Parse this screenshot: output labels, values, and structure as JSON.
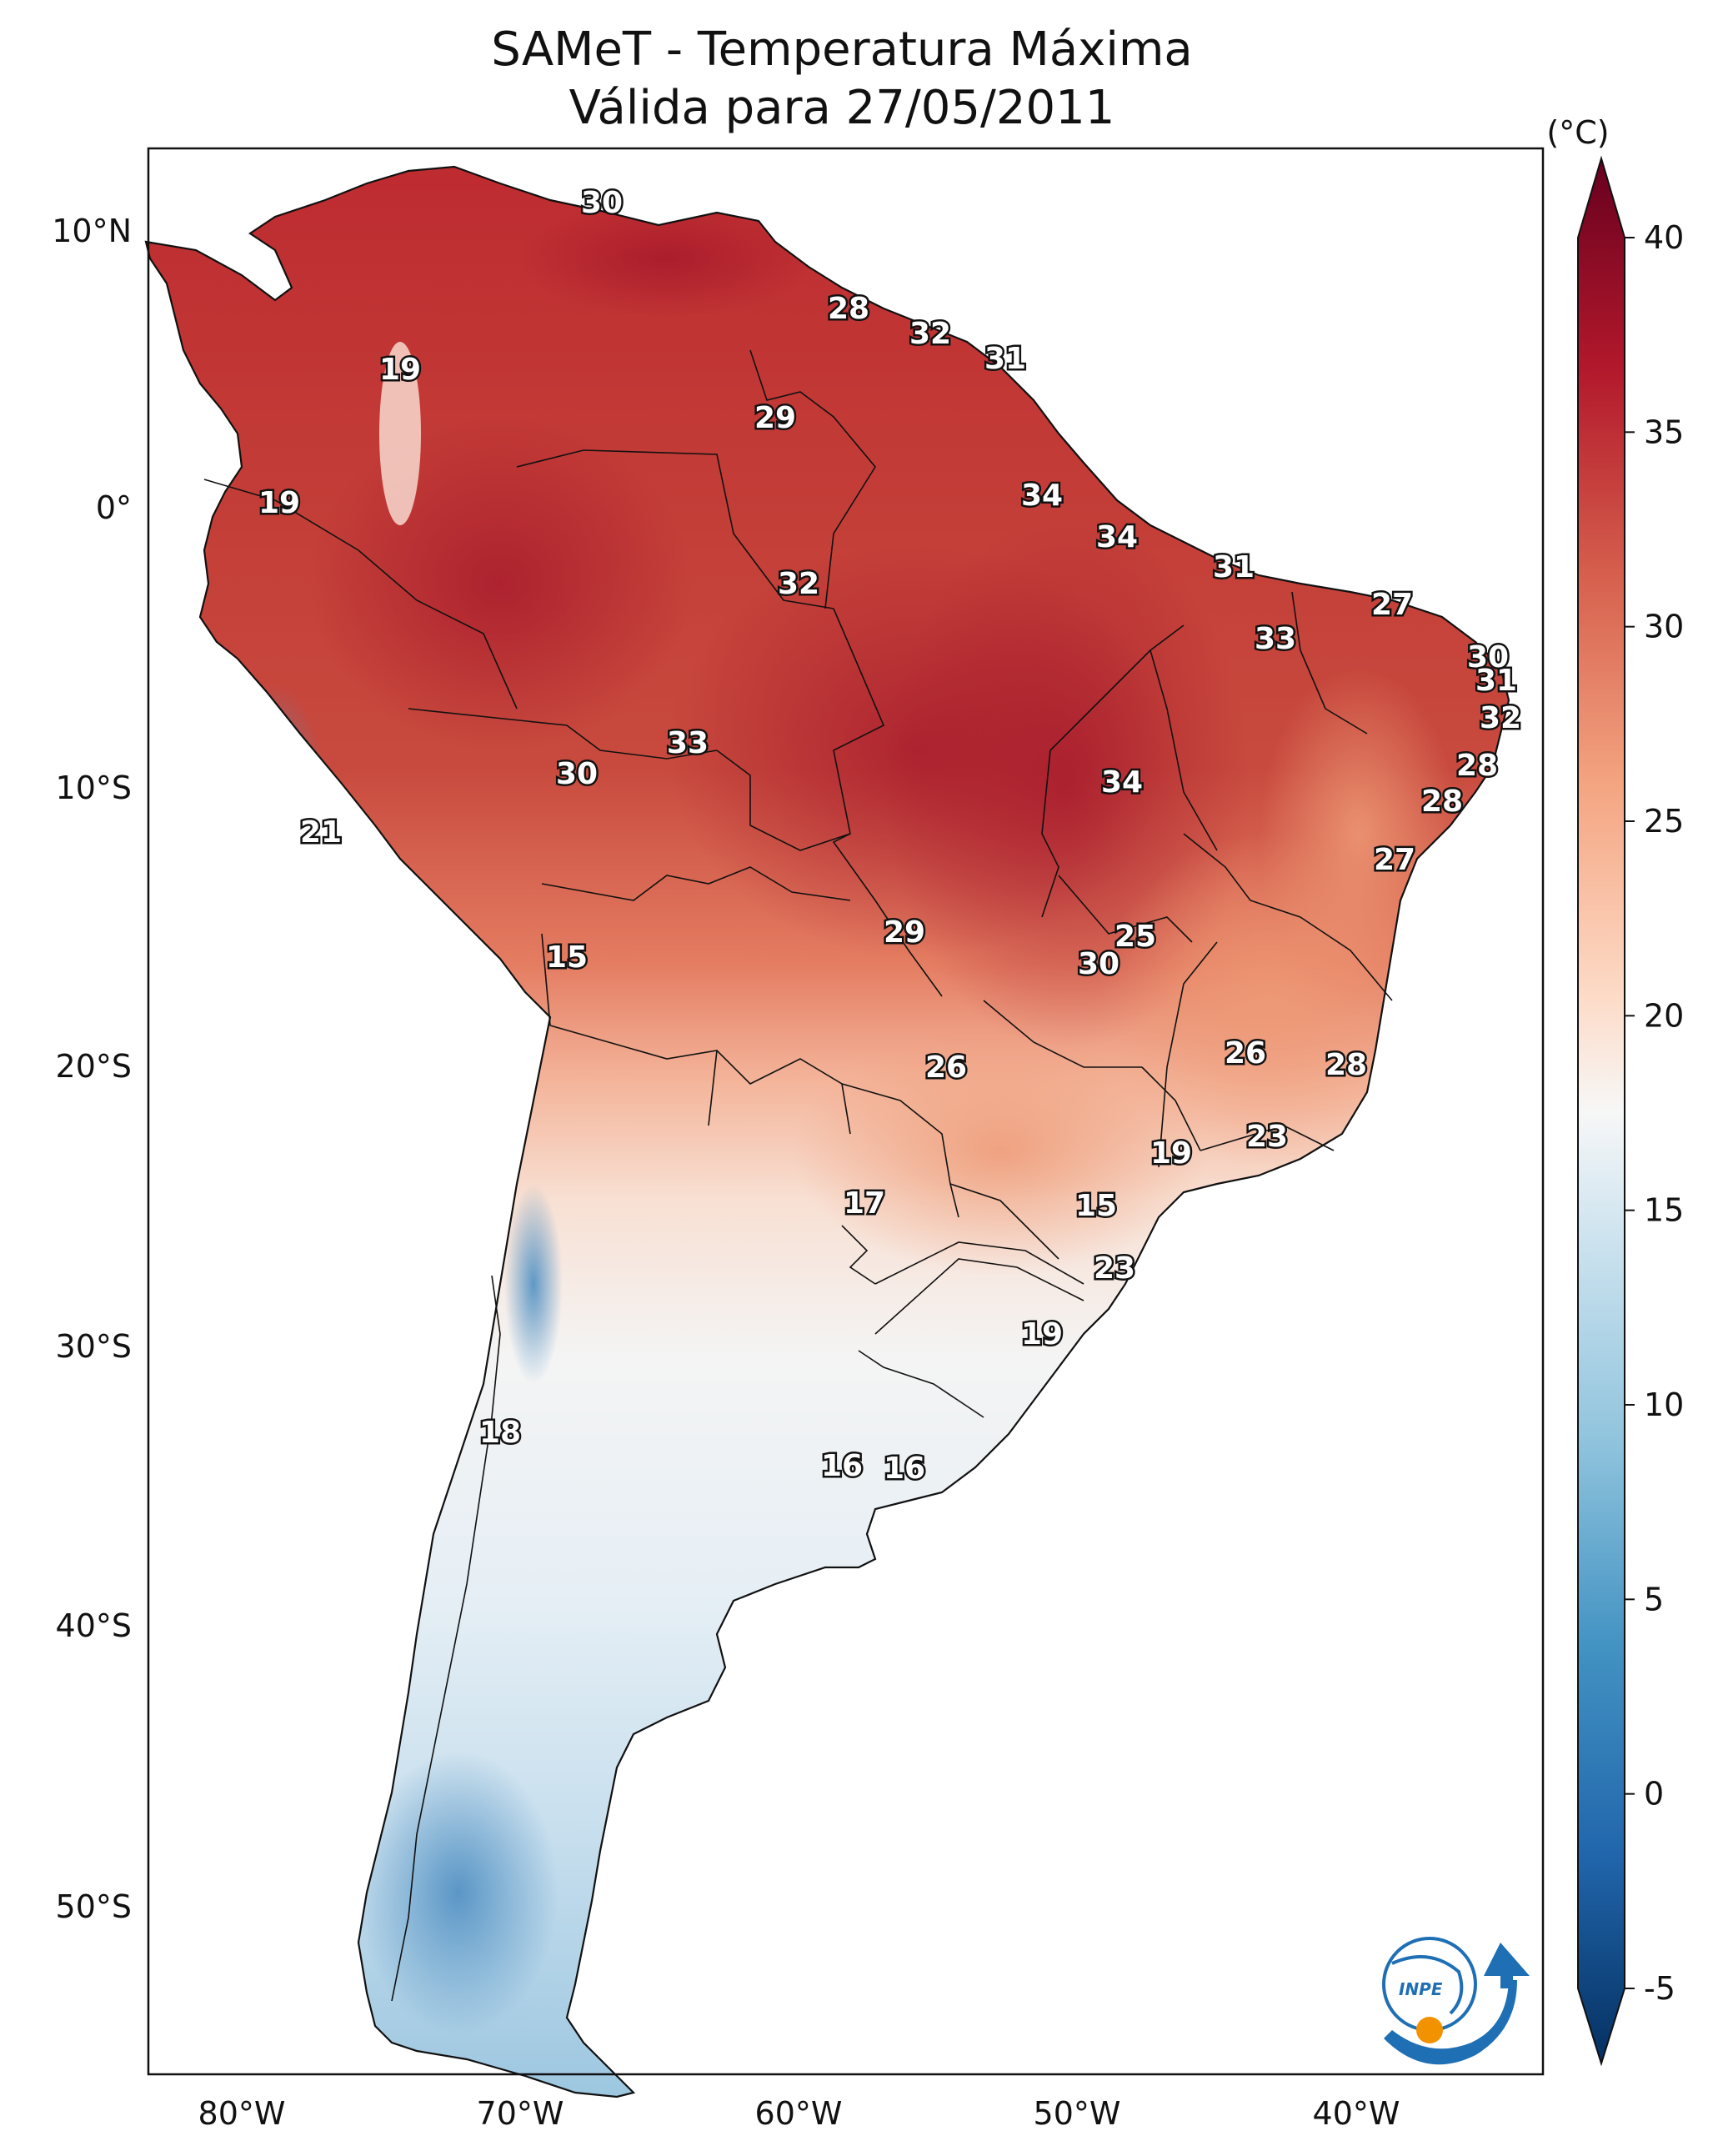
{
  "title_line1": "SAMeT - Temperatura Máxima",
  "title_line2": "Válida para 27/05/2011",
  "colorbar": {
    "unit": "(°C)",
    "ticks": [
      "40",
      "35",
      "30",
      "25",
      "20",
      "15",
      "10",
      "5",
      "0",
      "-5"
    ],
    "colormap": "RdBu_r",
    "range": [
      -5,
      40
    ]
  },
  "axes": {
    "lat_labels": [
      "10°N",
      "0°",
      "10°S",
      "20°S",
      "30°S",
      "40°S",
      "50°S"
    ],
    "lon_labels": [
      "80°W",
      "70°W",
      "60°W",
      "50°W",
      "40°W"
    ]
  },
  "contour_labels": [
    "30",
    "28",
    "32",
    "31",
    "19",
    "29",
    "19",
    "34",
    "34",
    "31",
    "32",
    "27",
    "33",
    "30",
    "31",
    "32",
    "33",
    "30",
    "34",
    "28",
    "28",
    "21",
    "27",
    "15",
    "29",
    "25",
    "30",
    "26",
    "26",
    "28",
    "23",
    "19",
    "17",
    "15",
    "23",
    "19",
    "18",
    "16",
    "16"
  ],
  "colors": {
    "hot": "#b2182b",
    "warm": "#ef8a62",
    "mild": "#fddbc7",
    "neutral": "#f7f7f7",
    "cool": "#d1e5f0",
    "cold": "#67a9cf",
    "coldest": "#2166ac",
    "inpe_blue": "#1f6fb5",
    "inpe_orange": "#f39200"
  },
  "logo_text": "INPE"
}
